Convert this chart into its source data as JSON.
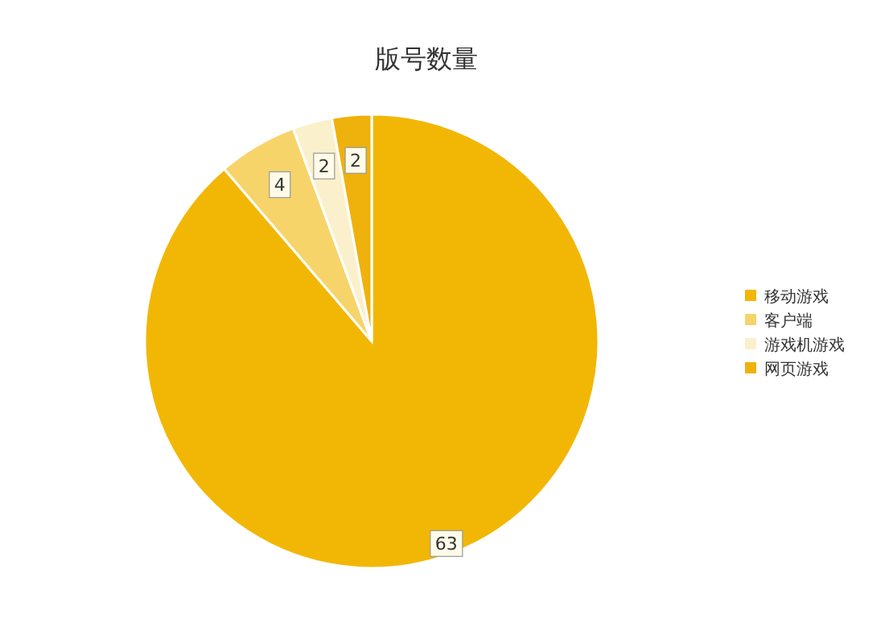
{
  "chart_data": {
    "type": "pie",
    "title": "版号数量",
    "categories": [
      "移动游戏",
      "客户端",
      "游戏机游戏",
      "网页游戏"
    ],
    "values": [
      63,
      4,
      2,
      2
    ],
    "colors": [
      "#f2b705",
      "#f6d46a",
      "#fbf0cc",
      "#efb20c"
    ],
    "data_labels": true,
    "legend": "right"
  }
}
